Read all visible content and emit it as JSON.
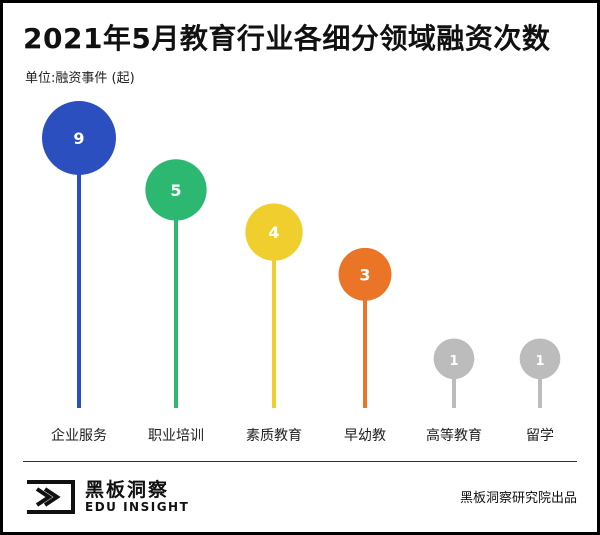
{
  "header": {
    "title": "2021年5月教育行业各细分领域融资次数",
    "unit_label": "单位:融资事件 (起)"
  },
  "footer": {
    "brand_cn": "黑板洞察",
    "brand_en": "EDU INSIGHT",
    "source": "黑板洞察研究院出品"
  },
  "chart_data": {
    "type": "bar",
    "title": "2021年5月教育行业各细分领域融资次数",
    "ylabel": "单位:融资事件 (起)",
    "categories": [
      "企业服务",
      "职业培训",
      "素质教育",
      "早幼教",
      "高等教育",
      "留学"
    ],
    "values": [
      9,
      5,
      4,
      3,
      1,
      1
    ],
    "colors": [
      "#2c4fc0",
      "#2db872",
      "#f0ce2e",
      "#ea7526",
      "#bcbcbc",
      "#bcbcbc"
    ],
    "grid": false
  }
}
